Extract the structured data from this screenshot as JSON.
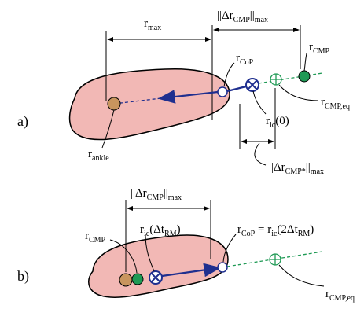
{
  "panels": [
    {
      "label": [
        "a)"
      ],
      "annotations": {
        "r_max": [
          "r",
          "max"
        ],
        "delta_cmp_max": [
          "||Δr",
          "CMP",
          "||",
          "max"
        ],
        "r_cop": [
          "r",
          "CoP"
        ],
        "r_cmp": [
          "r",
          "CMP"
        ],
        "r_cmp_eq": [
          "r",
          "CMP,eq"
        ],
        "r_ic": [
          "r",
          "ic",
          "(0)"
        ],
        "delta_cmp_star_max": [
          "||Δr",
          "CMP*",
          "||",
          "max"
        ],
        "r_ankle": [
          "r",
          "ankle"
        ]
      }
    },
    {
      "label": [
        "b)"
      ],
      "annotations": {
        "delta_cmp_max": [
          "||Δr",
          "CMP",
          "||",
          "max"
        ],
        "r_cmp": [
          "r",
          "CMP"
        ],
        "r_ic": [
          "r",
          "ic",
          "(Δt",
          "RM",
          ")"
        ],
        "r_cop": [
          "r",
          "CoP",
          " = r",
          "ic",
          "(2Δt",
          "RM",
          ")"
        ],
        "r_cmp_eq": [
          "r",
          "CMP,eq"
        ]
      }
    }
  ]
}
